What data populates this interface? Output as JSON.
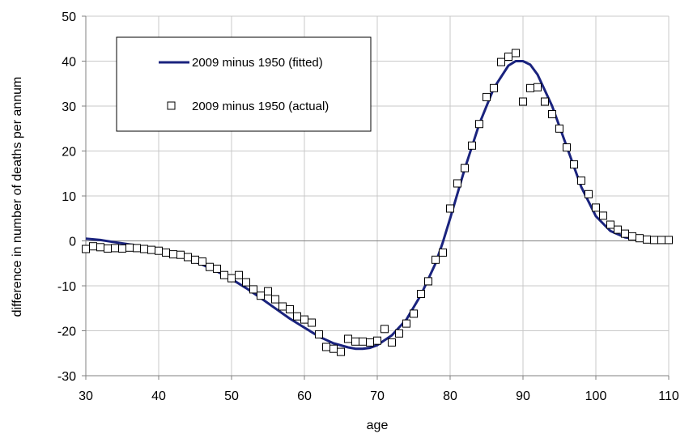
{
  "chart_data": {
    "type": "line",
    "title": "",
    "xlabel": "age",
    "ylabel": "difference in number  of deaths per annum",
    "xlim": [
      30,
      110
    ],
    "ylim": [
      -30,
      50
    ],
    "xticks": [
      30,
      40,
      50,
      60,
      70,
      80,
      90,
      100,
      110
    ],
    "yticks": [
      -30,
      -20,
      -10,
      0,
      10,
      20,
      30,
      40,
      50
    ],
    "grid": true,
    "legend_position": "top-left",
    "colors": {
      "fitted": "#1a237e",
      "grid": "#c8c8c8",
      "axis": "#808080"
    },
    "series": [
      {
        "name": "2009 minus 1950 (fitted)",
        "kind": "line",
        "x": [
          30,
          32,
          34,
          36,
          38,
          40,
          42,
          44,
          46,
          48,
          50,
          52,
          54,
          56,
          58,
          60,
          62,
          64,
          66,
          67,
          68,
          69,
          70,
          72,
          74,
          76,
          78,
          79,
          80,
          82,
          84,
          86,
          88,
          89,
          90,
          91,
          92,
          94,
          96,
          98,
          100,
          102,
          104,
          106,
          108,
          110
        ],
        "y": [
          0.5,
          0.2,
          -0.3,
          -0.8,
          -1.3,
          -2.0,
          -3.0,
          -4.0,
          -5.3,
          -6.8,
          -8.5,
          -10.5,
          -12.7,
          -15.0,
          -17.3,
          -19.3,
          -21.3,
          -22.8,
          -23.7,
          -24.0,
          -24.0,
          -23.8,
          -23.2,
          -21.0,
          -17.5,
          -12.0,
          -5.0,
          -0.3,
          5.0,
          16.0,
          26.0,
          34.0,
          39.0,
          40.0,
          40.0,
          39.2,
          37.0,
          30.0,
          21.0,
          12.0,
          5.5,
          2.2,
          0.8,
          0.3,
          0.1,
          0.0
        ]
      },
      {
        "name": "2009 minus 1950 (actual)",
        "kind": "scatter",
        "x": [
          30,
          31,
          32,
          33,
          34,
          35,
          36,
          37,
          38,
          39,
          40,
          41,
          42,
          43,
          44,
          45,
          46,
          47,
          48,
          49,
          50,
          51,
          52,
          53,
          54,
          55,
          56,
          57,
          58,
          59,
          60,
          61,
          62,
          63,
          64,
          65,
          66,
          67,
          68,
          69,
          70,
          71,
          72,
          73,
          74,
          75,
          76,
          77,
          78,
          79,
          80,
          81,
          82,
          83,
          84,
          85,
          86,
          87,
          88,
          89,
          90,
          91,
          92,
          93,
          94,
          95,
          96,
          97,
          98,
          99,
          100,
          101,
          102,
          103,
          104,
          105,
          106,
          107,
          108,
          109,
          110
        ],
        "y": [
          -1.8,
          -1.2,
          -1.4,
          -1.7,
          -1.6,
          -1.7,
          -1.5,
          -1.6,
          -1.8,
          -2.0,
          -2.2,
          -2.6,
          -3.0,
          -3.1,
          -3.6,
          -4.2,
          -4.6,
          -5.8,
          -6.2,
          -7.6,
          -8.3,
          -7.6,
          -9.2,
          -10.8,
          -12.2,
          -11.2,
          -13.0,
          -14.6,
          -15.2,
          -16.8,
          -17.5,
          -18.2,
          -20.8,
          -23.6,
          -24.0,
          -24.7,
          -21.8,
          -22.4,
          -22.4,
          -22.6,
          -22.2,
          -19.6,
          -22.6,
          -20.6,
          -18.4,
          -16.2,
          -11.8,
          -9.0,
          -4.2,
          -2.6,
          7.2,
          12.8,
          16.2,
          21.2,
          26.0,
          32.0,
          34.0,
          39.8,
          41.0,
          41.8,
          31.0,
          34.0,
          34.2,
          31.0,
          28.2,
          25.0,
          20.8,
          17.0,
          13.4,
          10.4,
          7.4,
          5.6,
          3.6,
          2.5,
          1.6,
          1.0,
          0.6,
          0.3,
          0.2,
          0.2,
          0.2
        ]
      }
    ]
  }
}
